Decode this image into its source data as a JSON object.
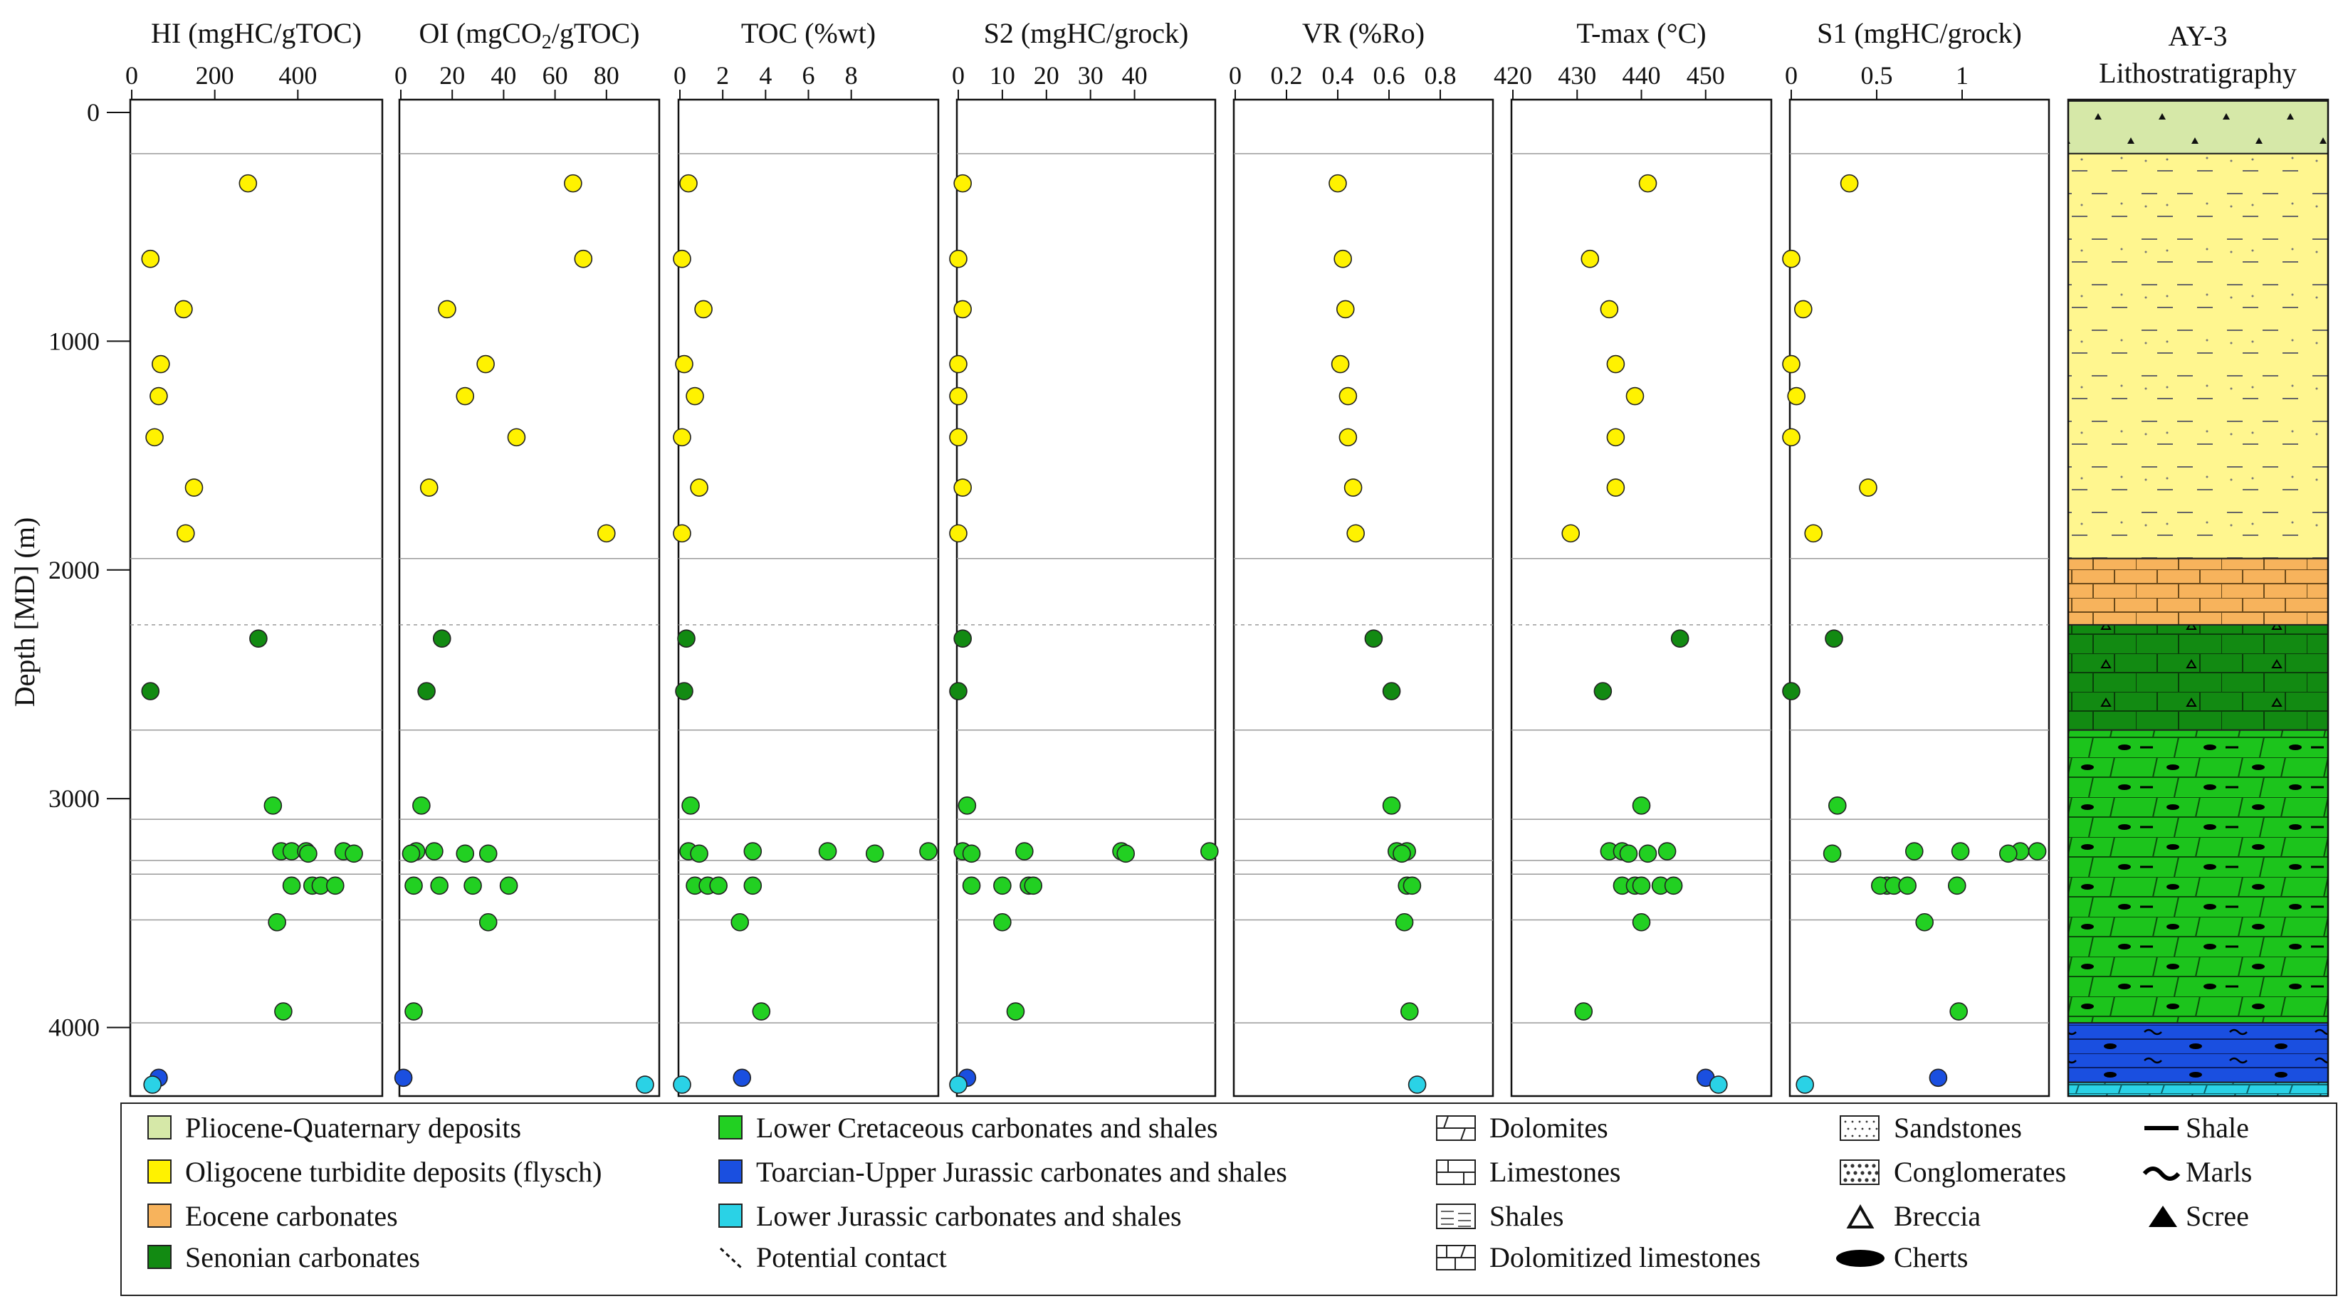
{
  "chart_data": {
    "type": "scatter",
    "well": "AY-3",
    "ylabel": "Depth [MD] (m)",
    "ylim": [
      0,
      4300
    ],
    "yticks": [
      0,
      1000,
      2000,
      3000,
      4000
    ],
    "depths": [
      310,
      640,
      860,
      1100,
      1240,
      1420,
      1640,
      1840,
      2300,
      2530,
      3030,
      3230,
      3240,
      3250,
      3380,
      3390,
      3395,
      3540,
      3930,
      4220,
      4250
    ],
    "units": [
      "flysch",
      "flysch",
      "flysch",
      "flysch",
      "flysch",
      "flysch",
      "flysch",
      "flysch",
      "senonian",
      "senonian",
      "lowcret",
      "lowcret",
      "lowcret",
      "lowcret",
      "lowcret",
      "lowcret",
      "lowcret",
      "lowcret",
      "lowcret",
      "toarcian",
      "lowjur"
    ],
    "panels": [
      {
        "key": "HI",
        "title_main": "HI (mgHC/gTOC)",
        "title_sub": "",
        "title_tail": "",
        "xlim": [
          0,
          600
        ],
        "xticks": [
          "0",
          "200",
          "400"
        ],
        "xtickvals": [
          0,
          200,
          400
        ],
        "series": [
          {
            "unit": "flysch",
            "depths": [
              310,
              640,
              860,
              1100,
              1240,
              1420,
              1640,
              1840
            ],
            "values": [
              280,
              45,
              125,
              70,
              65,
              55,
              150,
              130
            ]
          },
          {
            "unit": "senonian",
            "depths": [
              2300,
              2530
            ],
            "values": [
              305,
              45
            ]
          },
          {
            "unit": "lowcret",
            "depths": [
              3030,
              3230,
              3230,
              3230,
              3230,
              3240,
              3240,
              3380,
              3380,
              3380,
              3380,
              3540,
              3930
            ],
            "values": [
              340,
              360,
              385,
              420,
              510,
              535,
              425,
              385,
              435,
              455,
              490,
              350,
              365
            ]
          },
          {
            "unit": "toarcian",
            "depths": [
              4220
            ],
            "values": [
              65
            ]
          },
          {
            "unit": "lowjur",
            "depths": [
              4250
            ],
            "values": [
              50
            ]
          }
        ]
      },
      {
        "key": "OI",
        "title_main": "OI (mgCO",
        "title_sub": "2",
        "title_tail": "/gTOC)",
        "xlim": [
          0,
          100
        ],
        "xticks": [
          "0",
          "20",
          "40",
          "60",
          "80"
        ],
        "xtickvals": [
          0,
          20,
          40,
          60,
          80
        ],
        "series": [
          {
            "unit": "flysch",
            "depths": [
              310,
              640,
              860,
              1100,
              1240,
              1420,
              1640,
              1840
            ],
            "values": [
              67,
              71,
              18,
              33,
              25,
              45,
              11,
              80
            ]
          },
          {
            "unit": "senonian",
            "depths": [
              2300,
              2530
            ],
            "values": [
              16,
              10
            ]
          },
          {
            "unit": "lowcret",
            "depths": [
              3030,
              3230,
              3230,
              3240,
              3240,
              3240,
              3380,
              3380,
              3380,
              3380,
              3540,
              3930
            ],
            "values": [
              8,
              6,
              13,
              4,
              25,
              34,
              5,
              15,
              28,
              42,
              34,
              5
            ]
          },
          {
            "unit": "toarcian",
            "depths": [
              4220
            ],
            "values": [
              1
            ]
          },
          {
            "unit": "lowjur",
            "depths": [
              4250
            ],
            "values": [
              95
            ]
          }
        ]
      },
      {
        "key": "TOC",
        "title_main": "TOC (%wt)",
        "title_sub": "",
        "title_tail": "",
        "xlim": [
          0,
          12
        ],
        "xticks": [
          "0",
          "2",
          "4",
          "6",
          "8"
        ],
        "xtickvals": [
          0,
          2,
          4,
          6,
          8
        ],
        "series": [
          {
            "unit": "flysch",
            "depths": [
              310,
              640,
              860,
              1100,
              1240,
              1420,
              1640,
              1840
            ],
            "values": [
              0.4,
              0.1,
              1.1,
              0.2,
              0.7,
              0.1,
              0.9,
              0.1
            ]
          },
          {
            "unit": "senonian",
            "depths": [
              2300,
              2530
            ],
            "values": [
              0.3,
              0.2
            ]
          },
          {
            "unit": "lowcret",
            "depths": [
              3030,
              3230,
              3230,
              3230,
              3230,
              3240,
              3240,
              3380,
              3380,
              3380,
              3380,
              3540,
              3930
            ],
            "values": [
              0.5,
              3.4,
              6.9,
              11.6,
              0.4,
              9.1,
              0.9,
              0.7,
              1.3,
              1.8,
              3.4,
              2.8,
              3.8
            ]
          },
          {
            "unit": "toarcian",
            "depths": [
              4220
            ],
            "values": [
              2.9
            ]
          },
          {
            "unit": "lowjur",
            "depths": [
              4250
            ],
            "values": [
              0.1
            ]
          }
        ]
      },
      {
        "key": "S2",
        "title_main": "S2 (mgHC/grock)",
        "title_sub": "",
        "title_tail": "",
        "xlim": [
          0,
          58
        ],
        "xticks": [
          "0",
          "10",
          "20",
          "30",
          "40"
        ],
        "xtickvals": [
          0,
          10,
          20,
          30,
          40
        ],
        "series": [
          {
            "unit": "flysch",
            "depths": [
              310,
              640,
              860,
              1100,
              1240,
              1420,
              1640,
              1840
            ],
            "values": [
              1,
              0,
              1,
              0,
              0,
              0,
              1,
              0
            ]
          },
          {
            "unit": "senonian",
            "depths": [
              2300,
              2530
            ],
            "values": [
              1,
              0
            ]
          },
          {
            "unit": "lowcret",
            "depths": [
              3030,
              3230,
              3230,
              3230,
              3230,
              3240,
              3240,
              3380,
              3380,
              3380,
              3380,
              3540,
              3930
            ],
            "values": [
              2,
              1,
              15,
              37,
              57,
              38,
              3,
              3,
              10,
              16,
              17,
              10,
              13
            ]
          },
          {
            "unit": "toarcian",
            "depths": [
              4220
            ],
            "values": [
              2
            ]
          },
          {
            "unit": "lowjur",
            "depths": [
              4250
            ],
            "values": [
              0
            ]
          }
        ]
      },
      {
        "key": "VR",
        "title_main": "VR (%Ro)",
        "title_sub": "",
        "title_tail": "",
        "xlim": [
          0,
          1
        ],
        "xticks": [
          "0",
          "0.2",
          "0.4",
          "0.6",
          "0.8"
        ],
        "xtickvals": [
          0,
          0.2,
          0.4,
          0.6,
          0.8
        ],
        "series": [
          {
            "unit": "flysch",
            "depths": [
              310,
              640,
              860,
              1100,
              1240,
              1420,
              1640,
              1840
            ],
            "values": [
              0.4,
              0.42,
              0.43,
              0.41,
              0.44,
              0.44,
              0.46,
              0.47
            ]
          },
          {
            "unit": "senonian",
            "depths": [
              2300,
              2530
            ],
            "values": [
              0.54,
              0.61
            ]
          },
          {
            "unit": "lowcret",
            "depths": [
              3030,
              3230,
              3230,
              3240,
              3380,
              3380,
              3540,
              3930
            ],
            "values": [
              0.61,
              0.63,
              0.67,
              0.65,
              0.67,
              0.69,
              0.66,
              0.68
            ]
          },
          {
            "unit": "lowjur",
            "depths": [
              4250
            ],
            "values": [
              0.71
            ]
          }
        ]
      },
      {
        "key": "Tmax",
        "title_main": "T-max (°C)",
        "title_sub": "",
        "title_tail": "",
        "xlim": [
          420,
          460
        ],
        "xticks": [
          "420",
          "430",
          "440",
          "450"
        ],
        "xtickvals": [
          420,
          430,
          440,
          450
        ],
        "series": [
          {
            "unit": "flysch",
            "depths": [
              310,
              640,
              860,
              1100,
              1240,
              1420,
              1640,
              1840
            ],
            "values": [
              441,
              432,
              435,
              436,
              439,
              436,
              436,
              429
            ]
          },
          {
            "unit": "senonian",
            "depths": [
              2300,
              2530
            ],
            "values": [
              446,
              434
            ]
          },
          {
            "unit": "lowcret",
            "depths": [
              3030,
              3230,
              3230,
              3240,
              3240,
              3230,
              3380,
              3380,
              3380,
              3380,
              3380,
              3540,
              3930
            ],
            "values": [
              440,
              435,
              437,
              438,
              441,
              444,
              437,
              439,
              440,
              443,
              445,
              440,
              431
            ]
          },
          {
            "unit": "toarcian",
            "depths": [
              4220
            ],
            "values": [
              450
            ]
          },
          {
            "unit": "lowjur",
            "depths": [
              4250
            ],
            "values": [
              452
            ]
          }
        ]
      },
      {
        "key": "S1",
        "title_main": "S1 (mgHC/grock)",
        "title_sub": "",
        "title_tail": "",
        "xlim": [
          0,
          1.5
        ],
        "xticks": [
          "0",
          "0.5",
          "1"
        ],
        "xtickvals": [
          0,
          0.5,
          1
        ],
        "series": [
          {
            "unit": "flysch",
            "depths": [
              310,
              640,
              860,
              1100,
              1240,
              1420,
              1640,
              1840
            ],
            "values": [
              0.34,
              0.0,
              0.07,
              0.0,
              0.03,
              0.0,
              0.45,
              0.13
            ]
          },
          {
            "unit": "senonian",
            "depths": [
              2300,
              2530
            ],
            "values": [
              0.25,
              0.0
            ]
          },
          {
            "unit": "lowcret",
            "depths": [
              3030,
              3230,
              3230,
              3230,
              3230,
              3240,
              3240,
              3380,
              3380,
              3380,
              3380,
              3380,
              3540,
              3930
            ],
            "values": [
              0.27,
              0.72,
              0.99,
              1.34,
              1.44,
              0.24,
              1.27,
              0.56,
              0.52,
              0.6,
              0.68,
              0.97,
              0.78,
              0.98
            ]
          },
          {
            "unit": "toarcian",
            "depths": [
              4220
            ],
            "values": [
              0.86
            ]
          },
          {
            "unit": "lowjur",
            "depths": [
              4250
            ],
            "values": [
              0.08
            ]
          }
        ]
      }
    ],
    "boundaries": [
      180,
      1950,
      2700,
      3090,
      3270,
      3330,
      3530,
      3980
    ],
    "potential_contact": [
      2240
    ],
    "lithology_column": {
      "title_line1": "AY-3",
      "title_line2": "Lithostratigraphy",
      "units": [
        {
          "unit": "plioquat",
          "top": -50,
          "base": 180
        },
        {
          "unit": "flysch",
          "top": 180,
          "base": 1950
        },
        {
          "unit": "eocene",
          "top": 1950,
          "base": 2240
        },
        {
          "unit": "senonian",
          "top": 2240,
          "base": 2700
        },
        {
          "unit": "lowcret",
          "top": 2700,
          "base": 3980
        },
        {
          "unit": "toarcian",
          "top": 3980,
          "base": 4240
        },
        {
          "unit": "lowjur",
          "top": 4240,
          "base": 4300
        }
      ]
    },
    "colors": {
      "plioquat": "#d6e8a8",
      "flysch": "#fff200",
      "flysch_bg": "#fff68f",
      "eocene": "#f7b35c",
      "senonian": "#128a12",
      "lowcret": "#22d022",
      "lowcret_bg": "#1cc41c",
      "toarcian": "#1a4fe0",
      "lowjur": "#2ad2e6"
    }
  },
  "legend": {
    "units": [
      {
        "unit": "plioquat",
        "label": "Pliocene-Quaternary deposits"
      },
      {
        "unit": "flysch",
        "label": "Oligocene turbidite deposits (flysch)"
      },
      {
        "unit": "eocene",
        "label": "Eocene carbonates"
      },
      {
        "unit": "senonian",
        "label": "Senonian carbonates"
      },
      {
        "unit": "lowcret",
        "label": "Lower Cretaceous carbonates and shales"
      },
      {
        "unit": "toarcian",
        "label": "Toarcian-Upper Jurassic carbonates and shales"
      },
      {
        "unit": "lowjur",
        "label": "Lower Jurassic carbonates and shales"
      }
    ],
    "contact_label": "Potential contact",
    "lithologies": [
      {
        "key": "dolomites",
        "label": "Dolomites"
      },
      {
        "key": "limestones",
        "label": "Limestones"
      },
      {
        "key": "shales",
        "label": "Shales"
      },
      {
        "key": "dololime",
        "label": "Dolomitized limestones"
      }
    ],
    "textures": [
      {
        "key": "sandstones",
        "label": "Sandstones"
      },
      {
        "key": "conglomerates",
        "label": "Conglomerates"
      },
      {
        "key": "breccia",
        "label": "Breccia"
      },
      {
        "key": "cherts",
        "label": "Cherts"
      }
    ],
    "symbols": [
      {
        "key": "shale",
        "label": "Shale"
      },
      {
        "key": "marls",
        "label": "Marls"
      },
      {
        "key": "scree",
        "label": "Scree"
      }
    ]
  }
}
